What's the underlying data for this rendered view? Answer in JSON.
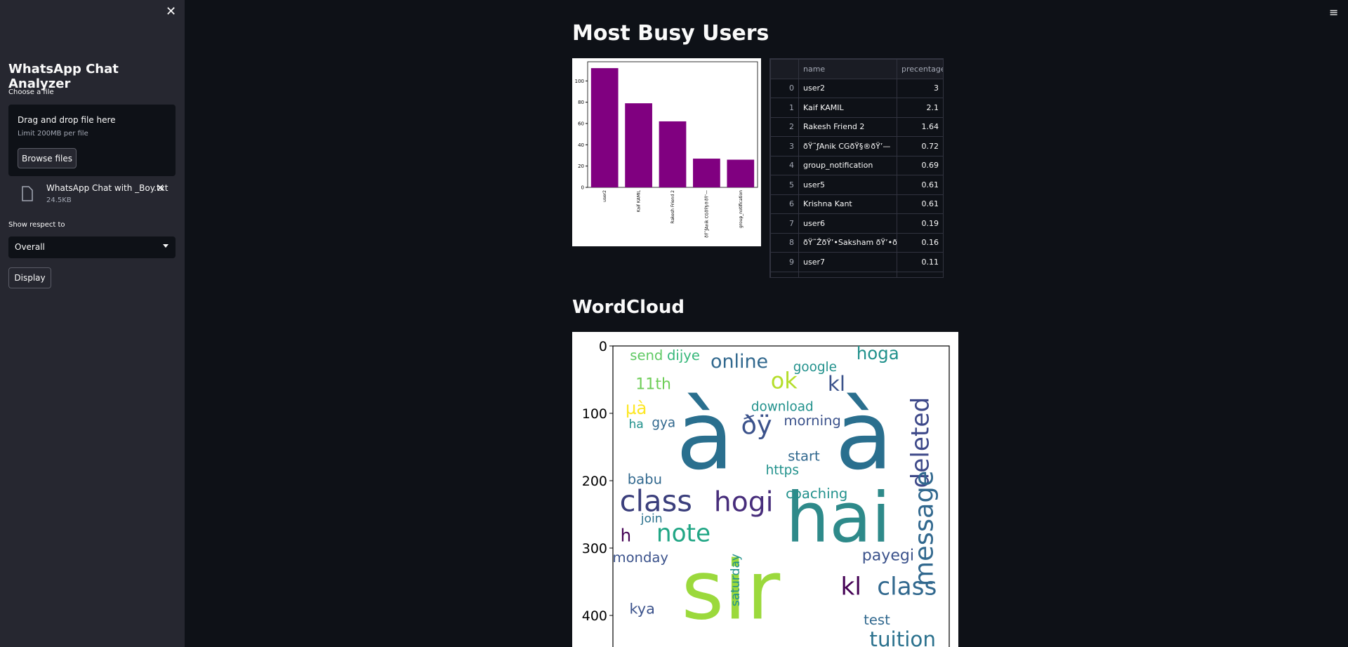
{
  "sidebar": {
    "title": "WhatsApp Chat Analyzer",
    "file_label": "Choose a file",
    "dropzone_text": "Drag and drop file here",
    "dropzone_limit": "Limit 200MB per file",
    "browse_button": "Browse files",
    "file_name": "WhatsApp Chat with _Boy.txt",
    "file_size": "24.5KB",
    "select_label": "Show respect to",
    "select_value": "Overall",
    "display_button": "Display"
  },
  "main": {
    "busy_heading": "Most Busy Users",
    "wordcloud_heading": "WordCloud"
  },
  "bar_chart": {
    "type": "bar",
    "categories": [
      "user2",
      "Kaif KAMIL",
      "Rakesh Friend 2",
      "ðŸ˜ƒAnik CGðŸ§®ðŸ’—",
      "group_notification"
    ],
    "values": [
      112,
      79,
      62,
      27,
      26
    ],
    "color": "#800080",
    "ylim": [
      0,
      118
    ],
    "yticks": [
      0,
      20,
      40,
      60,
      80,
      100
    ]
  },
  "table": {
    "columns": [
      "name",
      "precentage"
    ],
    "rows": [
      [
        "0",
        "user2",
        "3"
      ],
      [
        "1",
        "Kaif KAMIL",
        "2.1"
      ],
      [
        "2",
        "Rakesh Friend 2",
        "1.64"
      ],
      [
        "3",
        "ðŸ˜ƒAnik CGðŸ§®ðŸ’—",
        "0.72"
      ],
      [
        "4",
        "group_notification",
        "0.69"
      ],
      [
        "5",
        "user5",
        "0.61"
      ],
      [
        "6",
        "Krishna Kant",
        "0.61"
      ],
      [
        "7",
        "user6",
        "0.19"
      ],
      [
        "8",
        "ðŸ˜ŽðŸ’•Saksham ðŸ’•ðŸ˜Ž",
        "0.16"
      ],
      [
        "9",
        "user7",
        "0.11"
      ]
    ]
  },
  "wordcloud": {
    "yticks": [
      0,
      100,
      200,
      300,
      400
    ],
    "words": [
      "à",
      "à",
      "hai",
      "sir",
      "class",
      "hogi",
      "deleted",
      "message",
      "online",
      "ok",
      "kl",
      "hoga",
      "note",
      "kl",
      "class",
      "tuition",
      "payegi",
      "coaching",
      "download",
      "morning",
      "send",
      "dijye",
      "google",
      "11th",
      "babu",
      "monday",
      "join",
      "https",
      "start",
      "ðÿ",
      "µà",
      "gya",
      "ha",
      "h",
      "kya",
      "test",
      "saturday"
    ]
  }
}
